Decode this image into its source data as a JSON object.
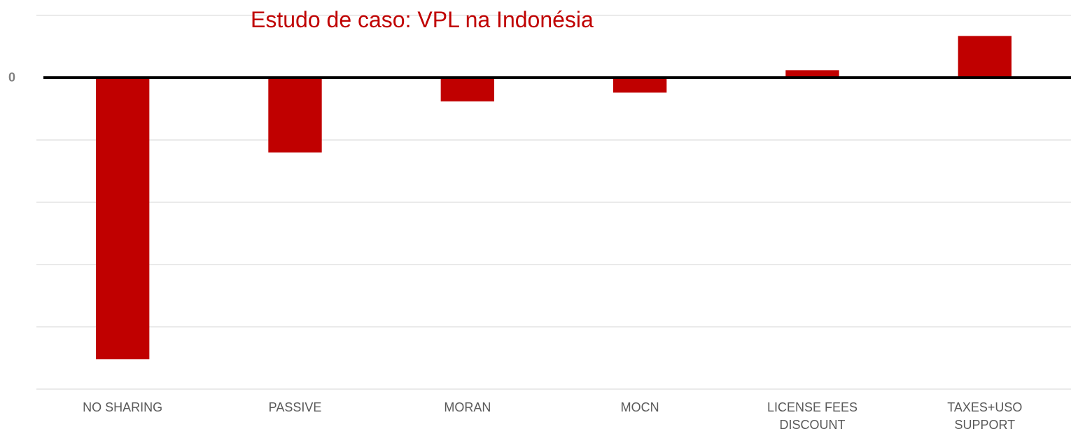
{
  "chart_data": {
    "type": "bar",
    "title": "Estudo de caso: VPL na Indonésia",
    "categories": [
      "NO SHARING",
      "PASSIVE",
      "MORAN",
      "MOCN",
      "LICENSE FEES\nDISCOUNT",
      "TAXES+USO\nSUPPORT"
    ],
    "values": [
      -4.52,
      -1.2,
      -0.38,
      -0.24,
      0.12,
      0.67
    ],
    "color": "#c00000",
    "ylim": [
      -5,
      1
    ],
    "yticks": [
      0
    ],
    "ygrid": [
      1,
      -1,
      -2,
      -3,
      -4,
      -5
    ],
    "grid": true
  }
}
